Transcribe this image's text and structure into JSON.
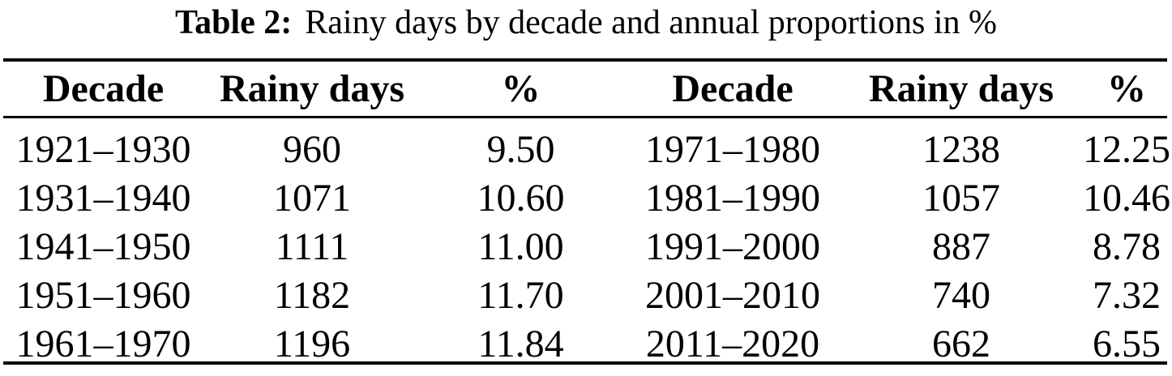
{
  "caption": {
    "label": "Table 2:",
    "text": "Rainy days by decade and annual proportions in %"
  },
  "table": {
    "headers": [
      "Decade",
      "Rainy days",
      "%",
      "Decade",
      "Rainy days",
      "%"
    ],
    "rows": [
      [
        "1921–1930",
        "960",
        "9.50",
        "1971–1980",
        "1238",
        "12.25"
      ],
      [
        "1931–1940",
        "1071",
        "10.60",
        "1981–1990",
        "1057",
        "10.46"
      ],
      [
        "1941–1950",
        "1111",
        "11.00",
        "1991–2000",
        "887",
        "8.78"
      ],
      [
        "1951–1960",
        "1182",
        "11.70",
        "2001–2010",
        "740",
        "7.32"
      ],
      [
        "1961–1970",
        "1196",
        "11.84",
        "2011–2020",
        "662",
        "6.55"
      ]
    ]
  },
  "chart_data": {
    "type": "table",
    "title": "Table 2: Rainy days by decade and annual proportions in %",
    "columns": [
      "Decade",
      "Rainy days",
      "%"
    ],
    "records": [
      {
        "decade": "1921–1930",
        "rainy_days": 960,
        "percent": 9.5
      },
      {
        "decade": "1931–1940",
        "rainy_days": 1071,
        "percent": 10.6
      },
      {
        "decade": "1941–1950",
        "rainy_days": 1111,
        "percent": 11.0
      },
      {
        "decade": "1951–1960",
        "rainy_days": 1182,
        "percent": 11.7
      },
      {
        "decade": "1961–1970",
        "rainy_days": 1196,
        "percent": 11.84
      },
      {
        "decade": "1971–1980",
        "rainy_days": 1238,
        "percent": 12.25
      },
      {
        "decade": "1981–1990",
        "rainy_days": 1057,
        "percent": 10.46
      },
      {
        "decade": "1991–2000",
        "rainy_days": 887,
        "percent": 8.78
      },
      {
        "decade": "2001–2010",
        "rainy_days": 740,
        "percent": 7.32
      },
      {
        "decade": "2011–2020",
        "rainy_days": 662,
        "percent": 6.55
      }
    ],
    "colors": {
      "text": "#000000",
      "background": "#ffffff",
      "rules": "#000000"
    }
  }
}
